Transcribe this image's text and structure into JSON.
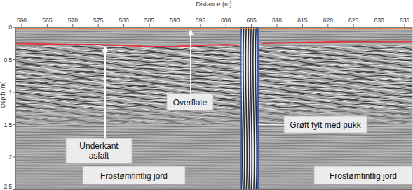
{
  "chart_data": {
    "type": "radargram",
    "xlabel": "Distance (m)",
    "ylabel": "Depth (m)",
    "xlim": [
      558.8,
      636.5
    ],
    "xticks": [
      560,
      565,
      570,
      575,
      580,
      585,
      590,
      595,
      600,
      605,
      610,
      615,
      620,
      625,
      630,
      635
    ],
    "ylim": [
      0,
      2.5
    ],
    "yticks": [
      0,
      0.5,
      1,
      1.5,
      2,
      2.5
    ],
    "series": [
      {
        "color": "#e0803a",
        "x": [
          558.8,
          580,
          600,
          620,
          636.5
        ],
        "values": [
          0.02,
          0.02,
          0.02,
          0.02,
          0.02
        ]
      },
      {
        "color": "#e8323c",
        "x": [
          558.8,
          565,
          570,
          575,
          580,
          585,
          590,
          595,
          600,
          602.5,
          603,
          606.5,
          607,
          612,
          618,
          624,
          630,
          636.5
        ],
        "values": [
          0.25,
          0.26,
          0.27,
          0.27,
          0.28,
          0.3,
          0.3,
          0.28,
          0.27,
          0.28,
          null,
          null,
          0.25,
          0.24,
          0.23,
          0.22,
          0.22,
          0.22
        ]
      },
      {
        "color": "#3a5fc0",
        "x": [
          602.9,
          602.9
        ],
        "values": [
          0,
          2.5
        ]
      },
      {
        "color": "#3a5fc0",
        "x": [
          606.3,
          606.3
        ],
        "values": [
          0,
          2.5
        ]
      }
    ],
    "annotations": [
      {
        "text": "Underkant asfalt"
      },
      {
        "text": "Overflate"
      },
      {
        "text": "Grøft fylt med pukk"
      },
      {
        "text": "Frostømfintlig jord"
      },
      {
        "text": "Frostømfintlig jord"
      }
    ]
  }
}
